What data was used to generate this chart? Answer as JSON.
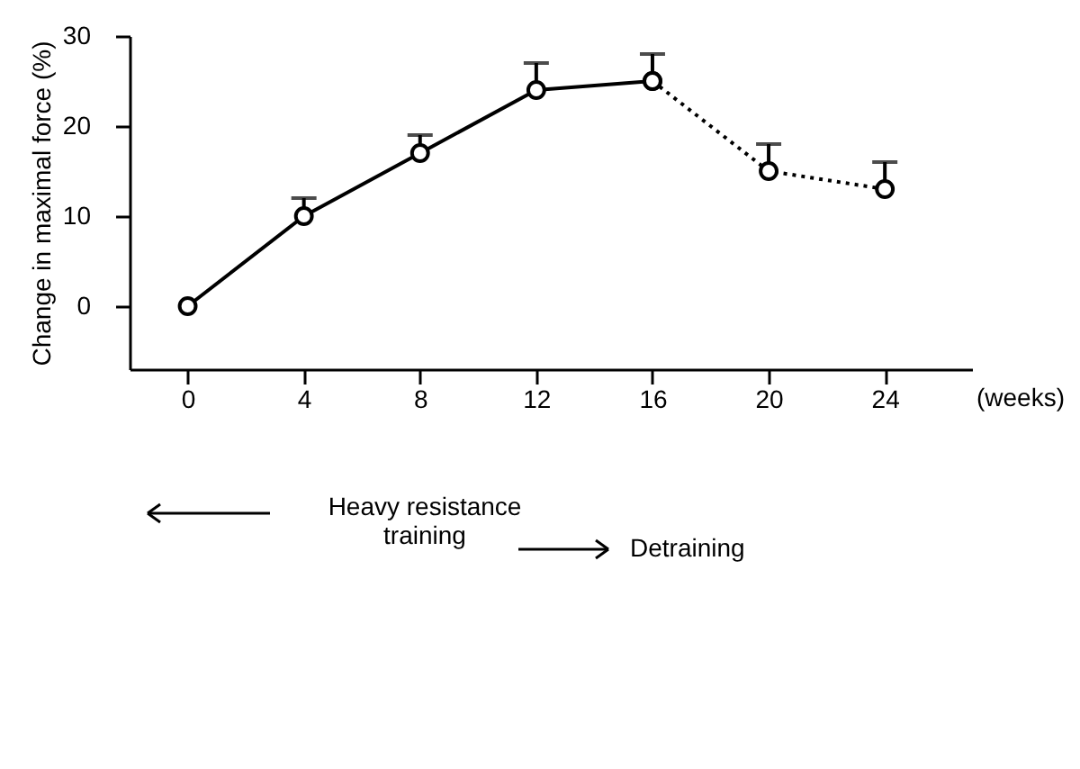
{
  "chart_data": {
    "type": "line",
    "ylabel": "Change in maximal force (%)",
    "xlabel": "(weeks)",
    "xlim": [
      -2,
      27
    ],
    "xticks": [
      0,
      4,
      8,
      12,
      16,
      20,
      24
    ],
    "ylim": [
      -7,
      30
    ],
    "yticks": [
      0,
      10,
      20,
      30
    ],
    "grid": false,
    "marker": "circle",
    "series": [
      {
        "color": "#000000",
        "line_style": "solid",
        "x": [
          0,
          4,
          8,
          12,
          16
        ],
        "values": [
          0,
          10,
          17,
          24,
          25
        ],
        "errors": [
          null,
          [
            10,
            12
          ],
          [
            17,
            19
          ],
          [
            24,
            27
          ],
          [
            25,
            28
          ]
        ]
      },
      {
        "color": "#000000",
        "line_style": "dotted",
        "x": [
          16,
          20,
          24
        ],
        "values": [
          25,
          15,
          13
        ],
        "errors": [
          null,
          [
            15,
            18
          ],
          [
            13,
            16
          ]
        ]
      }
    ],
    "annotations": [
      "Heavy resistance\ntraining",
      "Detraining"
    ]
  }
}
